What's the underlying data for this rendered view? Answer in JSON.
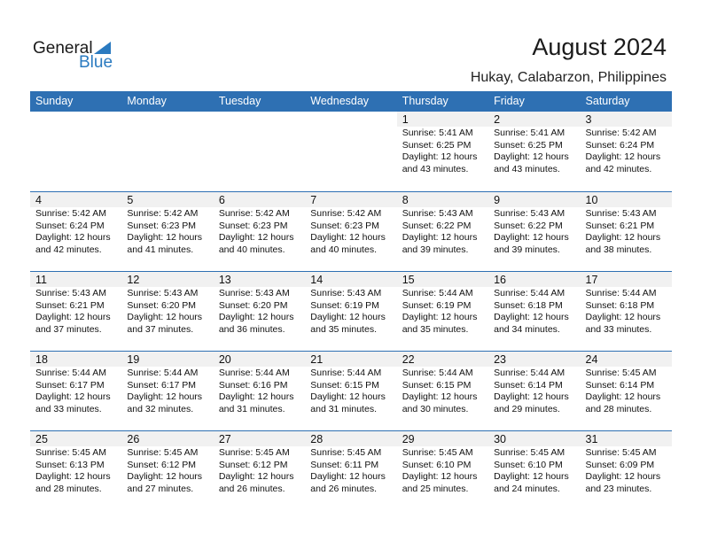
{
  "logo": {
    "general": "General",
    "blue": "Blue"
  },
  "title": "August 2024",
  "location": "Hukay, Calabarzon, Philippines",
  "days": [
    "Sunday",
    "Monday",
    "Tuesday",
    "Wednesday",
    "Thursday",
    "Friday",
    "Saturday"
  ],
  "weeks": [
    [
      null,
      null,
      null,
      null,
      {
        "day": "1",
        "sunrise": "Sunrise: 5:41 AM",
        "sunset": "Sunset: 6:25 PM",
        "daylight": "Daylight: 12 hours",
        "minutes": "and 43 minutes."
      },
      {
        "day": "2",
        "sunrise": "Sunrise: 5:41 AM",
        "sunset": "Sunset: 6:25 PM",
        "daylight": "Daylight: 12 hours",
        "minutes": "and 43 minutes."
      },
      {
        "day": "3",
        "sunrise": "Sunrise: 5:42 AM",
        "sunset": "Sunset: 6:24 PM",
        "daylight": "Daylight: 12 hours",
        "minutes": "and 42 minutes."
      }
    ],
    [
      {
        "day": "4",
        "sunrise": "Sunrise: 5:42 AM",
        "sunset": "Sunset: 6:24 PM",
        "daylight": "Daylight: 12 hours",
        "minutes": "and 42 minutes."
      },
      {
        "day": "5",
        "sunrise": "Sunrise: 5:42 AM",
        "sunset": "Sunset: 6:23 PM",
        "daylight": "Daylight: 12 hours",
        "minutes": "and 41 minutes."
      },
      {
        "day": "6",
        "sunrise": "Sunrise: 5:42 AM",
        "sunset": "Sunset: 6:23 PM",
        "daylight": "Daylight: 12 hours",
        "minutes": "and 40 minutes."
      },
      {
        "day": "7",
        "sunrise": "Sunrise: 5:42 AM",
        "sunset": "Sunset: 6:23 PM",
        "daylight": "Daylight: 12 hours",
        "minutes": "and 40 minutes."
      },
      {
        "day": "8",
        "sunrise": "Sunrise: 5:43 AM",
        "sunset": "Sunset: 6:22 PM",
        "daylight": "Daylight: 12 hours",
        "minutes": "and 39 minutes."
      },
      {
        "day": "9",
        "sunrise": "Sunrise: 5:43 AM",
        "sunset": "Sunset: 6:22 PM",
        "daylight": "Daylight: 12 hours",
        "minutes": "and 39 minutes."
      },
      {
        "day": "10",
        "sunrise": "Sunrise: 5:43 AM",
        "sunset": "Sunset: 6:21 PM",
        "daylight": "Daylight: 12 hours",
        "minutes": "and 38 minutes."
      }
    ],
    [
      {
        "day": "11",
        "sunrise": "Sunrise: 5:43 AM",
        "sunset": "Sunset: 6:21 PM",
        "daylight": "Daylight: 12 hours",
        "minutes": "and 37 minutes."
      },
      {
        "day": "12",
        "sunrise": "Sunrise: 5:43 AM",
        "sunset": "Sunset: 6:20 PM",
        "daylight": "Daylight: 12 hours",
        "minutes": "and 37 minutes."
      },
      {
        "day": "13",
        "sunrise": "Sunrise: 5:43 AM",
        "sunset": "Sunset: 6:20 PM",
        "daylight": "Daylight: 12 hours",
        "minutes": "and 36 minutes."
      },
      {
        "day": "14",
        "sunrise": "Sunrise: 5:43 AM",
        "sunset": "Sunset: 6:19 PM",
        "daylight": "Daylight: 12 hours",
        "minutes": "and 35 minutes."
      },
      {
        "day": "15",
        "sunrise": "Sunrise: 5:44 AM",
        "sunset": "Sunset: 6:19 PM",
        "daylight": "Daylight: 12 hours",
        "minutes": "and 35 minutes."
      },
      {
        "day": "16",
        "sunrise": "Sunrise: 5:44 AM",
        "sunset": "Sunset: 6:18 PM",
        "daylight": "Daylight: 12 hours",
        "minutes": "and 34 minutes."
      },
      {
        "day": "17",
        "sunrise": "Sunrise: 5:44 AM",
        "sunset": "Sunset: 6:18 PM",
        "daylight": "Daylight: 12 hours",
        "minutes": "and 33 minutes."
      }
    ],
    [
      {
        "day": "18",
        "sunrise": "Sunrise: 5:44 AM",
        "sunset": "Sunset: 6:17 PM",
        "daylight": "Daylight: 12 hours",
        "minutes": "and 33 minutes."
      },
      {
        "day": "19",
        "sunrise": "Sunrise: 5:44 AM",
        "sunset": "Sunset: 6:17 PM",
        "daylight": "Daylight: 12 hours",
        "minutes": "and 32 minutes."
      },
      {
        "day": "20",
        "sunrise": "Sunrise: 5:44 AM",
        "sunset": "Sunset: 6:16 PM",
        "daylight": "Daylight: 12 hours",
        "minutes": "and 31 minutes."
      },
      {
        "day": "21",
        "sunrise": "Sunrise: 5:44 AM",
        "sunset": "Sunset: 6:15 PM",
        "daylight": "Daylight: 12 hours",
        "minutes": "and 31 minutes."
      },
      {
        "day": "22",
        "sunrise": "Sunrise: 5:44 AM",
        "sunset": "Sunset: 6:15 PM",
        "daylight": "Daylight: 12 hours",
        "minutes": "and 30 minutes."
      },
      {
        "day": "23",
        "sunrise": "Sunrise: 5:44 AM",
        "sunset": "Sunset: 6:14 PM",
        "daylight": "Daylight: 12 hours",
        "minutes": "and 29 minutes."
      },
      {
        "day": "24",
        "sunrise": "Sunrise: 5:45 AM",
        "sunset": "Sunset: 6:14 PM",
        "daylight": "Daylight: 12 hours",
        "minutes": "and 28 minutes."
      }
    ],
    [
      {
        "day": "25",
        "sunrise": "Sunrise: 5:45 AM",
        "sunset": "Sunset: 6:13 PM",
        "daylight": "Daylight: 12 hours",
        "minutes": "and 28 minutes."
      },
      {
        "day": "26",
        "sunrise": "Sunrise: 5:45 AM",
        "sunset": "Sunset: 6:12 PM",
        "daylight": "Daylight: 12 hours",
        "minutes": "and 27 minutes."
      },
      {
        "day": "27",
        "sunrise": "Sunrise: 5:45 AM",
        "sunset": "Sunset: 6:12 PM",
        "daylight": "Daylight: 12 hours",
        "minutes": "and 26 minutes."
      },
      {
        "day": "28",
        "sunrise": "Sunrise: 5:45 AM",
        "sunset": "Sunset: 6:11 PM",
        "daylight": "Daylight: 12 hours",
        "minutes": "and 26 minutes."
      },
      {
        "day": "29",
        "sunrise": "Sunrise: 5:45 AM",
        "sunset": "Sunset: 6:10 PM",
        "daylight": "Daylight: 12 hours",
        "minutes": "and 25 minutes."
      },
      {
        "day": "30",
        "sunrise": "Sunrise: 5:45 AM",
        "sunset": "Sunset: 6:10 PM",
        "daylight": "Daylight: 12 hours",
        "minutes": "and 24 minutes."
      },
      {
        "day": "31",
        "sunrise": "Sunrise: 5:45 AM",
        "sunset": "Sunset: 6:09 PM",
        "daylight": "Daylight: 12 hours",
        "minutes": "and 23 minutes."
      }
    ]
  ],
  "colors": {
    "header": "#2e70b3",
    "brand": "#2a7ac0",
    "date_band": "#f1f1f1"
  }
}
